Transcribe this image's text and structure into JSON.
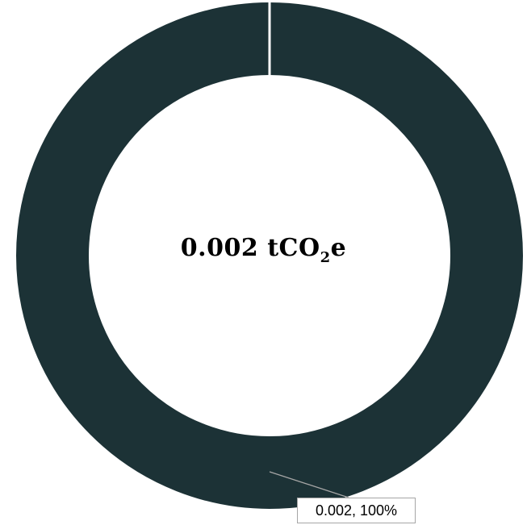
{
  "chart_data": {
    "type": "pie",
    "variant": "donut",
    "slices": [
      {
        "value": 0.002,
        "percent": 100,
        "color": "#1c3236"
      }
    ],
    "center_label": {
      "value": "0.002",
      "unit_prefix": "tCO",
      "unit_subscript": "2",
      "unit_suffix": "e"
    },
    "data_labels": [
      "0.002, 100%"
    ],
    "legend": "none"
  }
}
